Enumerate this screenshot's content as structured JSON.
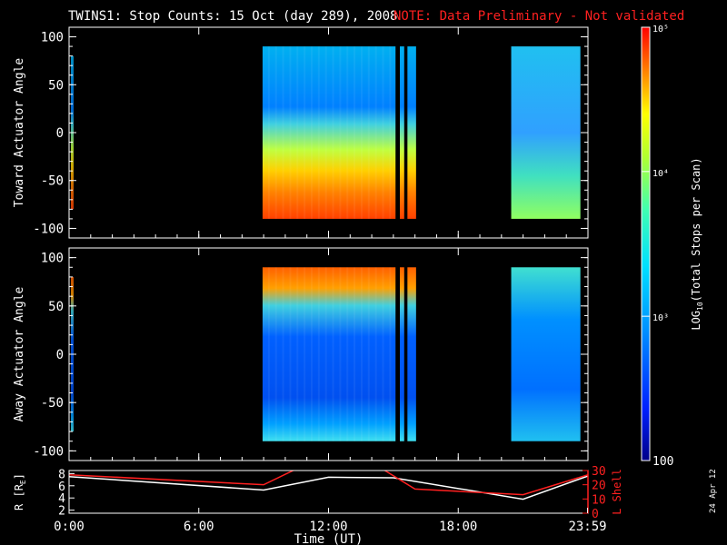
{
  "header": {
    "title": "TWINS1: Stop Counts: 15 Oct (day 289), 2008",
    "note": "NOTE: Data Preliminary - Not validated"
  },
  "footer": {
    "date_stamp": "24 Apr 12"
  },
  "colors": {
    "background": "#000000",
    "axes": "#ffffff",
    "note": "#ff2020",
    "r_line": "#ffffff",
    "l_shell_line": "#ff2020"
  },
  "chart_data": [
    {
      "type": "heatmap",
      "name": "toward",
      "ylabel": "Toward Actuator Angle",
      "ylim": [
        -110,
        110
      ],
      "yticks": [
        100,
        50,
        0,
        -50,
        -100
      ],
      "xlim_hours": [
        0,
        24
      ],
      "data_blocks_hours": [
        [
          8.95,
          15.1
        ],
        [
          15.3,
          15.5
        ],
        [
          15.65,
          16.05
        ],
        [
          20.45,
          23.65
        ]
      ],
      "colorscale": "log"
    },
    {
      "type": "heatmap",
      "name": "away",
      "ylabel": "Away Actuator Angle",
      "ylim": [
        -110,
        110
      ],
      "yticks": [
        100,
        50,
        0,
        -50,
        -100
      ],
      "xlim_hours": [
        0,
        24
      ],
      "data_blocks_hours": [
        [
          8.95,
          15.1
        ],
        [
          15.3,
          15.5
        ],
        [
          15.65,
          16.05
        ],
        [
          20.45,
          23.65
        ]
      ],
      "colorscale": "log"
    },
    {
      "type": "line",
      "name": "orbit",
      "xlabel": "Time (UT)",
      "xticks": [
        "0:00",
        "6:00",
        "12:00",
        "18:00",
        "23:59"
      ],
      "xtick_hours": [
        0,
        6,
        12,
        18,
        23.98
      ],
      "ylabel_left": "R [R",
      "ylabel_left_sub": "E",
      "ylabel_left_end": "]",
      "yticks_left": [
        "2",
        "4",
        "6",
        "8"
      ],
      "ylim_left": [
        1.5,
        8.5
      ],
      "ylabel_right": "L Shell",
      "yticks_right": [
        "0",
        "10",
        "20",
        "30"
      ],
      "ylim_right": [
        0,
        30
      ],
      "series": [
        {
          "name": "R",
          "x": [
            0,
            9,
            12,
            15,
            21,
            24
          ],
          "y": [
            7.5,
            5.3,
            7.4,
            7.3,
            3.8,
            7.6
          ]
        },
        {
          "name": "L Shell",
          "x": [
            0,
            9,
            10.5,
            14.5,
            16,
            21,
            24
          ],
          "y": [
            27,
            20,
            31,
            31,
            17,
            13,
            27
          ]
        }
      ]
    }
  ],
  "colorbar": {
    "label_main": "LOG",
    "label_sub": "10",
    "label_rest": "(Total Stops per Scan)",
    "ticks": [
      {
        "label": "100",
        "frac": 0.0
      },
      {
        "label": "10³",
        "frac": 0.333
      },
      {
        "label": "10⁴",
        "frac": 0.667
      },
      {
        "label": "10⁵",
        "frac": 1.0
      }
    ]
  }
}
